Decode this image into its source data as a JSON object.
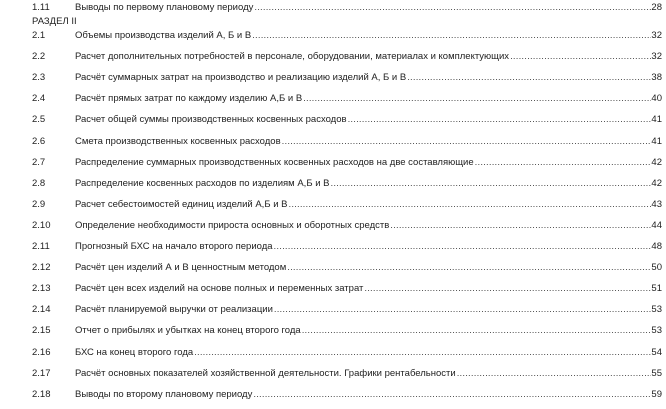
{
  "toc": {
    "partial_entry": {
      "number": "1.11",
      "title": "Выводы по первому плановому периоду",
      "page": "28"
    },
    "section_heading": "РАЗДЕЛ II",
    "entries": [
      {
        "number": "2.1",
        "title": "Объемы производства изделий А, Б и В",
        "page": "32"
      },
      {
        "number": "2.2",
        "title": "Расчет дополнительных потребностей в персонале, оборудовании, материалах и комплектующих",
        "page": "32"
      },
      {
        "number": "2.3",
        "title": "Расчёт суммарных затрат на производство и реализацию изделий А, Б и В",
        "page": "38"
      },
      {
        "number": "2.4",
        "title": "Расчёт прямых затрат по каждому изделию А,Б и В",
        "page": "40"
      },
      {
        "number": "2.5",
        "title": "Расчет общей суммы производственных косвенных расходов",
        "page": "41"
      },
      {
        "number": "2.6",
        "title": "Смета производственных косвенных расходов",
        "page": "41"
      },
      {
        "number": "2.7",
        "title": "Распределение суммарных производственных косвенных расходов на две составляющие",
        "page": "42"
      },
      {
        "number": "2.8",
        "title": "Распределение косвенных расходов по изделиям А,Б и В",
        "page": "42"
      },
      {
        "number": "2.9",
        "title": "Расчет себестоимостей единиц изделий А,Б и В",
        "page": "43"
      },
      {
        "number": "2.10",
        "title": "Определение необходимости прироста основных и оборотных средств",
        "page": "44"
      },
      {
        "number": "2.11",
        "title": "Прогнозный БХС на начало второго периода",
        "page": "48"
      },
      {
        "number": "2.12",
        "title": "Расчёт цен изделий А и В ценностным методом",
        "page": "50"
      },
      {
        "number": "2.13",
        "title": "Расчёт цен всех изделий на основе полных и переменных затрат",
        "page": "51"
      },
      {
        "number": "2.14",
        "title": "Расчёт планируемой выручки от реализации",
        "page": "53"
      },
      {
        "number": "2.15",
        "title": "Отчет о прибылях и убытках на конец второго года",
        "page": "53"
      },
      {
        "number": "2.16",
        "title": "БХС на конец второго года",
        "page": "54"
      },
      {
        "number": "2.17",
        "title": "Расчёт основных показателей хозяйственной деятельности. Графики рентабельности",
        "page": "55"
      },
      {
        "number": "2.18",
        "title": "Выводы по второму плановому периоду",
        "page": "59"
      }
    ]
  }
}
